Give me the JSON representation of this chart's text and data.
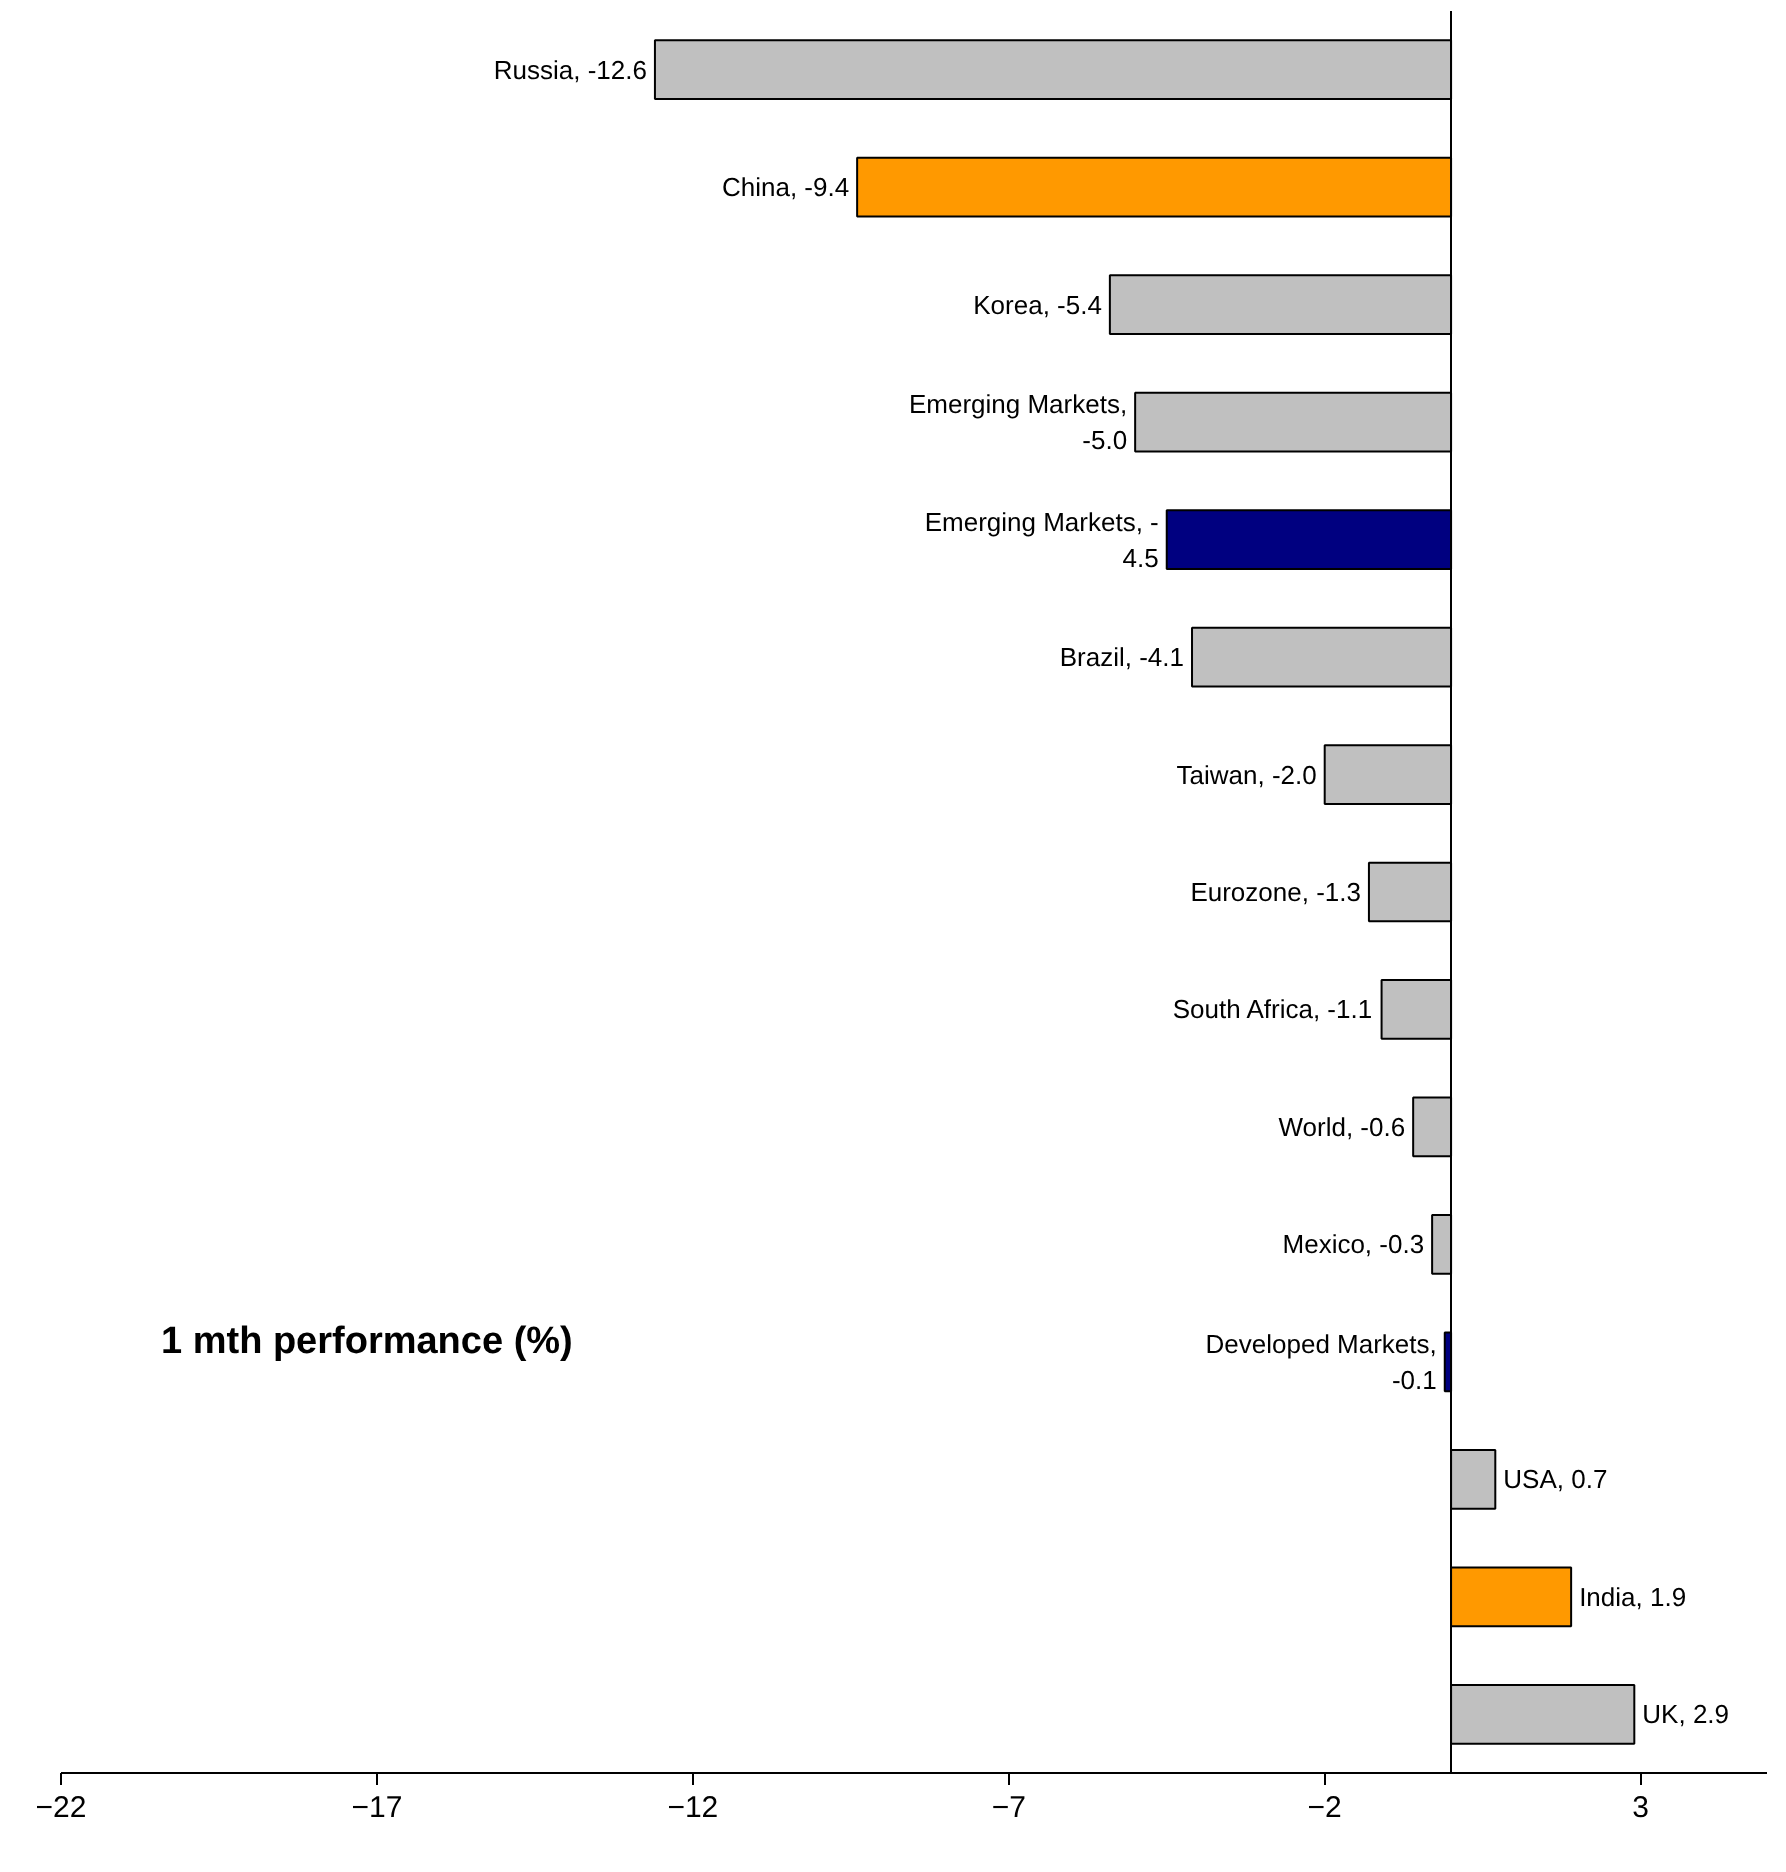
{
  "chart_data": {
    "type": "bar",
    "orientation": "horizontal",
    "categories": [
      null,
      null,
      null,
      null,
      null,
      null,
      null,
      null,
      null,
      null,
      null,
      null,
      null,
      null,
      null
    ],
    "values": [
      -12.6,
      -9.4,
      -5.4,
      -5.0,
      -4.5,
      -4.1,
      -2.0,
      -1.3,
      -1.1,
      -0.6,
      -0.3,
      -0.1,
      0.7,
      1.9,
      2.9
    ],
    "colors": [
      "#c0c0c0",
      "#ff9900",
      "#c0c0c0",
      "#c0c0c0",
      "#000080",
      "#c0c0c0",
      "#c0c0c0",
      "#c0c0c0",
      "#c0c0c0",
      "#c0c0c0",
      "#c0c0c0",
      "#000080",
      "#c0c0c0",
      "#ff9900",
      "#c0c0c0"
    ],
    "value_labels": [
      "Russia, -12.6",
      "China, -9.4",
      "Korea, -5.4",
      "Emerging Markets,\n-5.0",
      "Emerging Markets, -\n4.5",
      "Brazil, -4.1",
      "Taiwan, -2.0",
      "Eurozone, -1.3",
      "South Africa, -1.1",
      "World, -0.6",
      "Mexico, -0.3",
      "Developed Markets,\n-0.1",
      "USA, 0.7",
      "India, 1.9",
      "UK, 2.9"
    ],
    "xlim": [
      -22,
      5
    ],
    "xticks": [
      -22,
      -17,
      -12,
      -7,
      -2,
      3
    ],
    "tick_labels": "x",
    "grid": false,
    "annotations": [
      "1 mth performance (%)"
    ]
  }
}
